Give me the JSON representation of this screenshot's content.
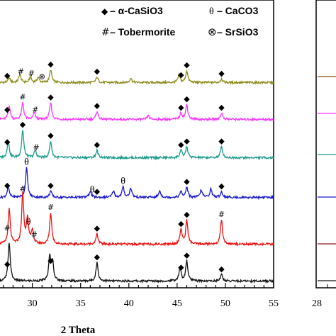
{
  "chart_data": {
    "type": "line",
    "title": "",
    "xlabel": "2 Theta",
    "ylabel": "",
    "xlim": [
      26.5,
      55
    ],
    "x_ticks": [
      "30",
      "35",
      "40",
      "45",
      "50",
      "55"
    ],
    "x_tick_values": [
      30,
      35,
      40,
      45,
      50,
      55
    ],
    "grid": false,
    "legend": {
      "placement": "top",
      "entries": [
        {
          "symbol": "◆",
          "label": "– α-CaSiO3",
          "marker": "diamond"
        },
        {
          "symbol": "θ",
          "label": "– CaCO3",
          "marker": "theta"
        },
        {
          "symbol": "#",
          "label": "– Tobermorite",
          "marker": "hash"
        },
        {
          "symbol": "⊗",
          "label": "– SrSiO3",
          "marker": "otimes"
        }
      ]
    },
    "series": [
      {
        "color": "#8b8b1a",
        "baseline": 0.92,
        "peaks": [
          [
            27.6,
            0.25
          ],
          [
            28.7,
            0.45
          ],
          [
            29.8,
            0.3
          ],
          [
            30.6,
            0.28
          ],
          [
            31.9,
            0.7
          ],
          [
            36.7,
            0.3
          ],
          [
            40.2,
            0.25
          ],
          [
            45.2,
            0.4
          ],
          [
            46.0,
            0.65
          ],
          [
            49.6,
            0.2
          ]
        ],
        "markers": [
          {
            "x": 27.4,
            "s": "◆"
          },
          {
            "x": 28.8,
            "s": "#"
          },
          {
            "x": 29.9,
            "s": "#"
          },
          {
            "x": 31.0,
            "s": "⊗"
          },
          {
            "x": 31.9,
            "s": "◆"
          },
          {
            "x": 36.7,
            "s": "◆"
          },
          {
            "x": 45.4,
            "s": "◆"
          },
          {
            "x": 46.0,
            "s": "◆"
          },
          {
            "x": 49.6,
            "s": "◆"
          }
        ]
      },
      {
        "color": "#ff33ff",
        "baseline": 0.93,
        "peaks": [
          [
            27.6,
            0.75
          ],
          [
            29.0,
            0.9
          ],
          [
            30.2,
            0.35
          ],
          [
            31.9,
            0.9
          ],
          [
            36.7,
            0.45
          ],
          [
            42.0,
            0.2
          ],
          [
            45.4,
            0.35
          ],
          [
            46.0,
            0.8
          ],
          [
            49.6,
            0.35
          ]
        ],
        "markers": [
          {
            "x": 27.4,
            "s": "◆"
          },
          {
            "x": 29.0,
            "s": "#"
          },
          {
            "x": 30.3,
            "s": "#"
          },
          {
            "x": 31.9,
            "s": "◆"
          },
          {
            "x": 36.7,
            "s": "◆"
          },
          {
            "x": 45.4,
            "s": "◆"
          },
          {
            "x": 46.0,
            "s": "◆"
          },
          {
            "x": 49.6,
            "s": "◆"
          }
        ]
      },
      {
        "color": "#1a9a8a",
        "baseline": 0.95,
        "peaks": [
          [
            27.5,
            0.9
          ],
          [
            29.0,
            1.5
          ],
          [
            30.3,
            0.4
          ],
          [
            31.9,
            0.9
          ],
          [
            36.7,
            0.4
          ],
          [
            45.4,
            0.4
          ],
          [
            46.0,
            0.6
          ],
          [
            49.6,
            0.6
          ]
        ],
        "markers": [
          {
            "x": 27.4,
            "s": "◆"
          },
          {
            "x": 29.0,
            "s": "◆"
          },
          {
            "x": 30.4,
            "s": "#"
          },
          {
            "x": 31.9,
            "s": "◆"
          },
          {
            "x": 36.7,
            "s": "◆"
          },
          {
            "x": 45.4,
            "s": "◆"
          },
          {
            "x": 46.0,
            "s": "◆"
          },
          {
            "x": 49.6,
            "s": "◆"
          }
        ]
      },
      {
        "color": "#1a1acc",
        "baseline": 0.9,
        "peaks": [
          [
            27.5,
            0.55
          ],
          [
            29.4,
            1.6
          ],
          [
            31.9,
            0.35
          ],
          [
            36.0,
            0.35
          ],
          [
            38.4,
            0.35
          ],
          [
            39.4,
            0.55
          ],
          [
            40.2,
            0.5
          ],
          [
            43.2,
            0.35
          ],
          [
            45.4,
            0.3
          ],
          [
            46.0,
            0.55
          ],
          [
            47.5,
            0.4
          ],
          [
            48.5,
            0.45
          ],
          [
            49.6,
            0.3
          ]
        ],
        "markers": [
          {
            "x": 27.4,
            "s": "◆"
          },
          {
            "x": 29.4,
            "s": "θ"
          },
          {
            "x": 31.9,
            "s": "◆"
          },
          {
            "x": 36.2,
            "s": "θ"
          },
          {
            "x": 36.7,
            "s": "◆"
          },
          {
            "x": 39.4,
            "s": "θ"
          },
          {
            "x": 46.0,
            "s": "◆"
          },
          {
            "x": 49.6,
            "s": "◆"
          }
        ]
      },
      {
        "color": "#ee1111",
        "baseline": 0.82,
        "peaks": [
          [
            27.6,
            1.9
          ],
          [
            29.0,
            2.7
          ],
          [
            29.5,
            1.4
          ],
          [
            30.0,
            0.7
          ],
          [
            31.9,
            1.7
          ],
          [
            36.7,
            0.55
          ],
          [
            45.4,
            0.8
          ],
          [
            46.0,
            1.3
          ],
          [
            49.6,
            1.3
          ]
        ],
        "markers": [
          {
            "x": 27.4,
            "s": "#"
          },
          {
            "x": 29.0,
            "s": "#"
          },
          {
            "x": 29.6,
            "s": "θ"
          },
          {
            "x": 30.2,
            "s": "#"
          },
          {
            "x": 31.9,
            "s": "#"
          },
          {
            "x": 36.7,
            "s": "◆"
          },
          {
            "x": 45.4,
            "s": "◆"
          },
          {
            "x": 46.0,
            "s": "◆"
          },
          {
            "x": 49.6,
            "s": "#"
          }
        ]
      },
      {
        "color": "#111111",
        "baseline": 0.85,
        "peaks": [
          [
            27.6,
            2.1
          ],
          [
            31.8,
            1.3
          ],
          [
            32.1,
            1.0
          ],
          [
            36.7,
            1.0
          ],
          [
            45.3,
            0.7
          ],
          [
            46.0,
            1.1
          ],
          [
            49.6,
            0.35
          ]
        ],
        "markers": [
          {
            "x": 27.4,
            "s": "◆"
          },
          {
            "x": 31.9,
            "s": "◆"
          },
          {
            "x": 36.7,
            "s": "◆"
          },
          {
            "x": 45.4,
            "s": "◆"
          },
          {
            "x": 46.0,
            "s": "◆"
          },
          {
            "x": 49.6,
            "s": "◆"
          }
        ]
      }
    ],
    "second_panel": {
      "x_ticks": [
        "28"
      ],
      "series_colors": [
        "#8b4513",
        "#ff33ff",
        "#1a9a8a",
        "#1a1acc",
        "#8b1a1a",
        "#111111"
      ]
    }
  }
}
